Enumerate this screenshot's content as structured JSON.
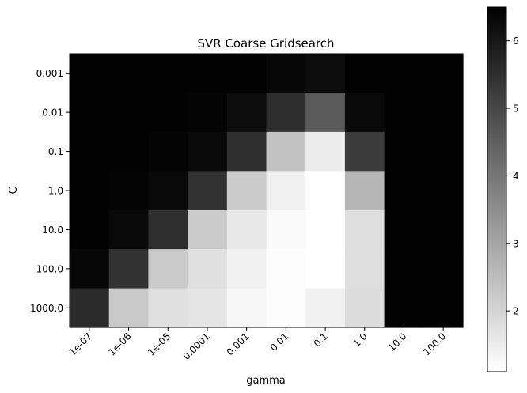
{
  "chart_data": {
    "type": "heatmap",
    "title": "SVR Coarse Gridsearch",
    "xlabel": "gamma",
    "ylabel": "C",
    "x_categories": [
      "1e-07",
      "1e-06",
      "1e-05",
      "0.0001",
      "0.001",
      "0.01",
      "0.1",
      "1.0",
      "10.0",
      "100.0"
    ],
    "y_categories": [
      "0.001",
      "0.01",
      "0.1",
      "1.0",
      "10.0",
      "100.0",
      "1000.0"
    ],
    "values": [
      [
        6.45,
        6.45,
        6.45,
        6.45,
        6.45,
        6.35,
        6.25,
        6.45,
        6.45,
        6.45
      ],
      [
        6.45,
        6.45,
        6.45,
        6.42,
        6.25,
        5.55,
        4.6,
        6.3,
        6.45,
        6.45
      ],
      [
        6.45,
        6.45,
        6.42,
        6.3,
        5.5,
        2.4,
        1.5,
        5.25,
        6.45,
        6.45
      ],
      [
        6.45,
        6.42,
        6.3,
        5.45,
        2.2,
        1.4,
        1.1,
        2.65,
        6.45,
        6.45
      ],
      [
        6.45,
        6.3,
        5.5,
        2.2,
        1.6,
        1.2,
        1.1,
        1.8,
        6.45,
        6.45
      ],
      [
        6.35,
        5.45,
        2.2,
        1.75,
        1.4,
        1.15,
        1.1,
        1.8,
        6.45,
        6.45
      ],
      [
        5.6,
        2.25,
        1.75,
        1.65,
        1.3,
        1.15,
        1.4,
        1.85,
        6.45,
        6.45
      ]
    ],
    "colormap": "gray_r",
    "vmin": 1.1,
    "vmax": 6.5,
    "colorbar_ticks": [
      "2",
      "3",
      "4",
      "5",
      "6"
    ],
    "grid": false
  }
}
